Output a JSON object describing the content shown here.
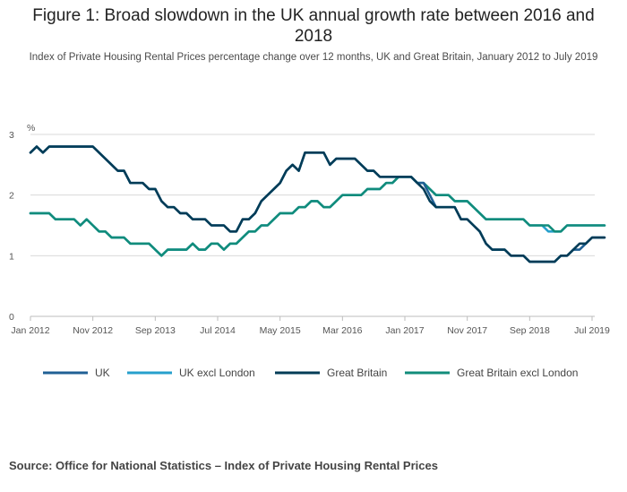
{
  "chart_data": {
    "type": "line",
    "title": "Figure 1: Broad slowdown in the UK annual growth rate between 2016 and 2018",
    "subtitle": "Index of Private Housing Rental Prices percentage change over 12 months, UK and Great Britain, January 2012 to July 2019",
    "ylabel": "%",
    "xlabel": "",
    "ylim": [
      0,
      3
    ],
    "yticks": [
      "0",
      "1",
      "2",
      "3"
    ],
    "xtick_labels": [
      "Jan 2012",
      "Nov 2012",
      "Sep 2013",
      "Jul 2014",
      "May 2015",
      "Mar 2016",
      "Jan 2017",
      "Nov 2017",
      "Sep 2018",
      "Jul 2019"
    ],
    "x_start": "Jan 2012",
    "n_months": 91,
    "grid": true,
    "legend_position": "bottom",
    "series": [
      {
        "name": "UK",
        "color": "#206095",
        "values": [
          2.7,
          2.8,
          2.7,
          2.8,
          2.8,
          2.8,
          2.8,
          2.8,
          2.8,
          2.8,
          2.8,
          2.7,
          2.6,
          2.5,
          2.4,
          2.4,
          2.2,
          2.2,
          2.2,
          2.1,
          2.1,
          1.9,
          1.8,
          1.8,
          1.7,
          1.7,
          1.6,
          1.6,
          1.6,
          1.5,
          1.5,
          1.5,
          1.4,
          1.4,
          1.6,
          1.6,
          1.7,
          1.9,
          2.0,
          2.1,
          2.2,
          2.4,
          2.5,
          2.4,
          2.7,
          2.7,
          2.7,
          2.7,
          2.5,
          2.6,
          2.6,
          2.6,
          2.6,
          2.5,
          2.4,
          2.4,
          2.3,
          2.3,
          2.3,
          2.3,
          2.3,
          2.3,
          2.2,
          2.2,
          2.0,
          1.8,
          1.8,
          1.8,
          1.8,
          1.6,
          1.6,
          1.5,
          1.4,
          1.2,
          1.1,
          1.1,
          1.1,
          1.0,
          1.0,
          1.0,
          0.9,
          0.9,
          0.9,
          0.9,
          0.9,
          1.0,
          1.0,
          1.1,
          1.1,
          1.2,
          1.3,
          1.3,
          1.3
        ]
      },
      {
        "name": "UK excl London",
        "color": "#27a0cc",
        "values": [
          1.7,
          1.7,
          1.7,
          1.7,
          1.6,
          1.6,
          1.6,
          1.6,
          1.5,
          1.6,
          1.5,
          1.4,
          1.4,
          1.3,
          1.3,
          1.3,
          1.2,
          1.2,
          1.2,
          1.2,
          1.1,
          1.0,
          1.1,
          1.1,
          1.1,
          1.1,
          1.2,
          1.1,
          1.1,
          1.2,
          1.2,
          1.1,
          1.2,
          1.2,
          1.3,
          1.4,
          1.4,
          1.5,
          1.5,
          1.6,
          1.7,
          1.7,
          1.7,
          1.8,
          1.8,
          1.9,
          1.9,
          1.8,
          1.8,
          1.9,
          2.0,
          2.0,
          2.0,
          2.0,
          2.1,
          2.1,
          2.1,
          2.2,
          2.2,
          2.3,
          2.3,
          2.3,
          2.2,
          2.2,
          2.1,
          2.0,
          2.0,
          2.0,
          1.9,
          1.9,
          1.9,
          1.8,
          1.7,
          1.6,
          1.6,
          1.6,
          1.6,
          1.6,
          1.6,
          1.6,
          1.5,
          1.5,
          1.5,
          1.4,
          1.4,
          1.4,
          1.5,
          1.5,
          1.5,
          1.5,
          1.5,
          1.5,
          1.5
        ]
      },
      {
        "name": "Great Britain",
        "color": "#003c57",
        "values": [
          2.7,
          2.8,
          2.7,
          2.8,
          2.8,
          2.8,
          2.8,
          2.8,
          2.8,
          2.8,
          2.8,
          2.7,
          2.6,
          2.5,
          2.4,
          2.4,
          2.2,
          2.2,
          2.2,
          2.1,
          2.1,
          1.9,
          1.8,
          1.8,
          1.7,
          1.7,
          1.6,
          1.6,
          1.6,
          1.5,
          1.5,
          1.5,
          1.4,
          1.4,
          1.6,
          1.6,
          1.7,
          1.9,
          2.0,
          2.1,
          2.2,
          2.4,
          2.5,
          2.4,
          2.7,
          2.7,
          2.7,
          2.7,
          2.5,
          2.6,
          2.6,
          2.6,
          2.6,
          2.5,
          2.4,
          2.4,
          2.3,
          2.3,
          2.3,
          2.3,
          2.3,
          2.3,
          2.2,
          2.1,
          1.9,
          1.8,
          1.8,
          1.8,
          1.8,
          1.6,
          1.6,
          1.5,
          1.4,
          1.2,
          1.1,
          1.1,
          1.1,
          1.0,
          1.0,
          1.0,
          0.9,
          0.9,
          0.9,
          0.9,
          0.9,
          1.0,
          1.0,
          1.1,
          1.2,
          1.2,
          1.3,
          1.3,
          1.3
        ]
      },
      {
        "name": "Great Britain excl London",
        "color": "#118c7b",
        "values": [
          1.7,
          1.7,
          1.7,
          1.7,
          1.6,
          1.6,
          1.6,
          1.6,
          1.5,
          1.6,
          1.5,
          1.4,
          1.4,
          1.3,
          1.3,
          1.3,
          1.2,
          1.2,
          1.2,
          1.2,
          1.1,
          1.0,
          1.1,
          1.1,
          1.1,
          1.1,
          1.2,
          1.1,
          1.1,
          1.2,
          1.2,
          1.1,
          1.2,
          1.2,
          1.3,
          1.4,
          1.4,
          1.5,
          1.5,
          1.6,
          1.7,
          1.7,
          1.7,
          1.8,
          1.8,
          1.9,
          1.9,
          1.8,
          1.8,
          1.9,
          2.0,
          2.0,
          2.0,
          2.0,
          2.1,
          2.1,
          2.1,
          2.2,
          2.2,
          2.3,
          2.3,
          2.3,
          2.2,
          2.2,
          2.1,
          2.0,
          2.0,
          2.0,
          1.9,
          1.9,
          1.9,
          1.8,
          1.7,
          1.6,
          1.6,
          1.6,
          1.6,
          1.6,
          1.6,
          1.6,
          1.5,
          1.5,
          1.5,
          1.5,
          1.4,
          1.4,
          1.5,
          1.5,
          1.5,
          1.5,
          1.5,
          1.5,
          1.5
        ]
      }
    ]
  },
  "source": "Source: Office for National Statistics – Index of Private Housing Rental Prices"
}
